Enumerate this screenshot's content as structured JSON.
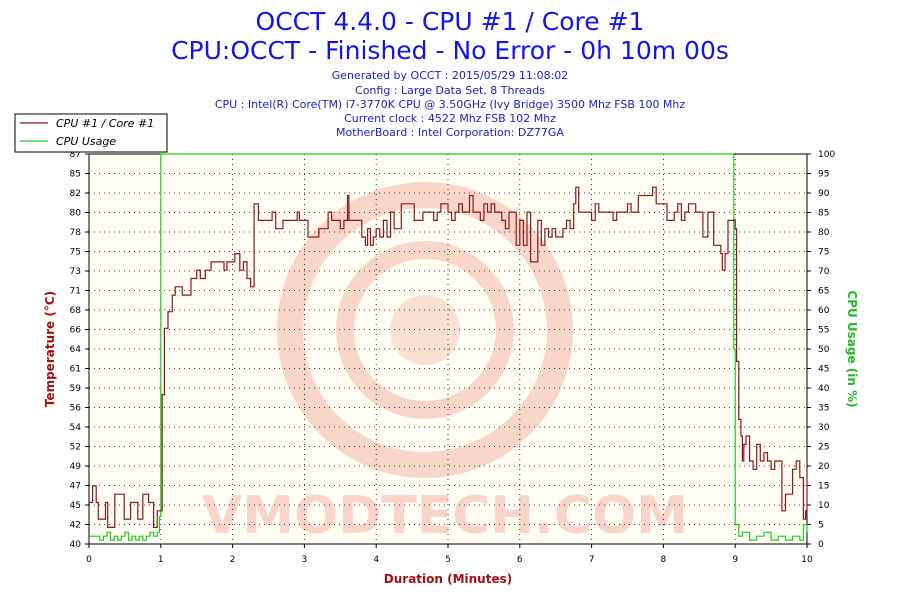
{
  "header": {
    "title_line1": "OCCT 4.4.0 - CPU #1 / Core #1",
    "title_line2": "CPU:OCCT - Finished - No Error - 0h 10m 00s",
    "generated": "Generated by OCCT : 2015/05/29 11:08:02",
    "config": "Config : Large Data Set, 8 Threads",
    "cpu": "CPU : Intel(R) Core(TM) i7-3770K CPU @ 3.50GHz (Ivy Bridge) 3500 Mhz FSB 100 Mhz",
    "clock": "Current clock : 4522 Mhz FSB 102 Mhz",
    "motherboard": "MotherBoard : Intel Corporation: DZ77GA"
  },
  "watermark": "VMODTECH.COM",
  "chart_data": {
    "type": "line",
    "xlabel": "Duration (Minutes)",
    "ylabel": "Temperature (°C)",
    "y2label": "CPU Usage (in %)",
    "xlim": [
      0,
      10
    ],
    "ylim": [
      40,
      87
    ],
    "y2lim": [
      0,
      100
    ],
    "x_ticks": [
      "0",
      "1",
      "2",
      "3",
      "4",
      "5",
      "6",
      "7",
      "8",
      "9",
      "10"
    ],
    "y_ticks": [
      "40",
      "42",
      "45",
      "47",
      "49",
      "52",
      "54",
      "56",
      "59",
      "61",
      "64",
      "66",
      "68",
      "71",
      "73",
      "75",
      "78",
      "80",
      "82",
      "85",
      "87"
    ],
    "y2_ticks": [
      "0",
      "5",
      "10",
      "15",
      "20",
      "25",
      "30",
      "35",
      "40",
      "45",
      "50",
      "55",
      "60",
      "65",
      "70",
      "75",
      "80",
      "85",
      "90",
      "95",
      "100"
    ],
    "grid": true,
    "legend_position": "top-left",
    "colors": {
      "temperature": "#8b1a1a",
      "usage": "#22cc22",
      "title": "#1414e6",
      "meta": "#2020c0"
    },
    "series": [
      {
        "name": "CPU #1 / Core #1",
        "axis": "left",
        "points": [
          [
            0,
            45
          ],
          [
            0.05,
            47
          ],
          [
            0.1,
            45
          ],
          [
            0.13,
            43
          ],
          [
            0.2,
            43
          ],
          [
            0.23,
            45
          ],
          [
            0.26,
            42
          ],
          [
            0.33,
            42
          ],
          [
            0.36,
            46
          ],
          [
            0.46,
            46
          ],
          [
            0.49,
            43
          ],
          [
            0.55,
            43
          ],
          [
            0.58,
            45
          ],
          [
            0.65,
            45
          ],
          [
            0.68,
            43
          ],
          [
            0.72,
            43
          ],
          [
            0.75,
            46
          ],
          [
            0.8,
            46
          ],
          [
            0.83,
            45
          ],
          [
            0.86,
            45
          ],
          [
            0.9,
            42
          ],
          [
            0.95,
            44
          ],
          [
            0.98,
            44
          ],
          [
            1.02,
            58
          ],
          [
            1.05,
            66
          ],
          [
            1.08,
            66
          ],
          [
            1.1,
            68
          ],
          [
            1.13,
            68
          ],
          [
            1.16,
            70
          ],
          [
            1.2,
            71
          ],
          [
            1.25,
            71
          ],
          [
            1.3,
            70
          ],
          [
            1.38,
            70
          ],
          [
            1.42,
            72
          ],
          [
            1.5,
            73
          ],
          [
            1.55,
            72
          ],
          [
            1.62,
            73
          ],
          [
            1.7,
            74
          ],
          [
            1.8,
            74
          ],
          [
            1.88,
            73
          ],
          [
            1.92,
            74
          ],
          [
            2.0,
            74
          ],
          [
            2.03,
            75
          ],
          [
            2.06,
            75
          ],
          [
            2.1,
            73
          ],
          [
            2.15,
            74
          ],
          [
            2.17,
            74
          ],
          [
            2.2,
            72
          ],
          [
            2.25,
            71
          ],
          [
            2.28,
            71
          ],
          [
            2.3,
            81
          ],
          [
            2.33,
            81
          ],
          [
            2.36,
            79
          ],
          [
            2.5,
            79
          ],
          [
            2.55,
            80
          ],
          [
            2.6,
            78
          ],
          [
            2.7,
            79
          ],
          [
            2.85,
            79
          ],
          [
            2.9,
            80
          ],
          [
            2.93,
            79
          ],
          [
            3.0,
            79
          ],
          [
            3.05,
            77
          ],
          [
            3.15,
            77
          ],
          [
            3.2,
            78
          ],
          [
            3.3,
            78
          ],
          [
            3.33,
            80
          ],
          [
            3.38,
            79
          ],
          [
            3.45,
            79
          ],
          [
            3.5,
            78
          ],
          [
            3.55,
            79
          ],
          [
            3.6,
            82
          ],
          [
            3.62,
            79
          ],
          [
            3.75,
            79
          ],
          [
            3.8,
            77
          ],
          [
            3.85,
            76
          ],
          [
            3.88,
            78
          ],
          [
            3.92,
            76
          ],
          [
            3.96,
            77
          ],
          [
            4.0,
            78
          ],
          [
            4.05,
            77
          ],
          [
            4.1,
            79
          ],
          [
            4.15,
            77
          ],
          [
            4.2,
            80
          ],
          [
            4.25,
            78
          ],
          [
            4.3,
            78
          ],
          [
            4.35,
            81
          ],
          [
            4.5,
            81
          ],
          [
            4.53,
            79
          ],
          [
            4.6,
            79
          ],
          [
            4.65,
            80
          ],
          [
            4.75,
            80
          ],
          [
            4.8,
            79
          ],
          [
            4.85,
            80
          ],
          [
            4.9,
            81
          ],
          [
            5.0,
            80
          ],
          [
            5.05,
            79
          ],
          [
            5.1,
            80
          ],
          [
            5.15,
            81
          ],
          [
            5.2,
            80
          ],
          [
            5.25,
            80
          ],
          [
            5.3,
            82
          ],
          [
            5.35,
            80
          ],
          [
            5.4,
            80
          ],
          [
            5.45,
            79
          ],
          [
            5.5,
            81
          ],
          [
            5.55,
            80
          ],
          [
            5.6,
            81
          ],
          [
            5.65,
            80
          ],
          [
            5.7,
            80
          ],
          [
            5.75,
            79
          ],
          [
            5.8,
            78
          ],
          [
            5.85,
            80
          ],
          [
            5.9,
            80
          ],
          [
            5.95,
            76
          ],
          [
            6.0,
            79
          ],
          [
            6.05,
            76
          ],
          [
            6.1,
            80
          ],
          [
            6.15,
            74
          ],
          [
            6.2,
            74
          ],
          [
            6.25,
            79
          ],
          [
            6.3,
            76
          ],
          [
            6.35,
            78
          ],
          [
            6.4,
            77
          ],
          [
            6.45,
            78
          ],
          [
            6.5,
            77
          ],
          [
            6.55,
            77
          ],
          [
            6.6,
            78
          ],
          [
            6.65,
            79
          ],
          [
            6.7,
            78
          ],
          [
            6.75,
            81
          ],
          [
            6.78,
            83
          ],
          [
            6.82,
            80
          ],
          [
            6.9,
            80
          ],
          [
            7.0,
            79
          ],
          [
            7.05,
            81
          ],
          [
            7.1,
            80
          ],
          [
            7.2,
            80
          ],
          [
            7.3,
            79
          ],
          [
            7.35,
            80
          ],
          [
            7.45,
            80
          ],
          [
            7.5,
            81
          ],
          [
            7.55,
            80
          ],
          [
            7.65,
            82
          ],
          [
            7.75,
            82
          ],
          [
            7.8,
            82
          ],
          [
            7.85,
            83
          ],
          [
            7.9,
            81
          ],
          [
            8.0,
            81
          ],
          [
            8.05,
            79
          ],
          [
            8.15,
            80
          ],
          [
            8.2,
            81
          ],
          [
            8.25,
            79
          ],
          [
            8.3,
            80
          ],
          [
            8.35,
            81
          ],
          [
            8.4,
            81
          ],
          [
            8.45,
            80
          ],
          [
            8.5,
            80
          ],
          [
            8.55,
            77
          ],
          [
            8.6,
            77
          ],
          [
            8.62,
            80
          ],
          [
            8.65,
            80
          ],
          [
            8.7,
            76
          ],
          [
            8.75,
            76
          ],
          [
            8.8,
            75
          ],
          [
            8.82,
            73
          ],
          [
            8.86,
            75
          ],
          [
            8.9,
            79
          ],
          [
            9.0,
            78
          ],
          [
            9.02,
            62
          ],
          [
            9.05,
            55
          ],
          [
            9.08,
            53
          ],
          [
            9.1,
            50
          ],
          [
            9.12,
            52
          ],
          [
            9.15,
            53
          ],
          [
            9.2,
            50
          ],
          [
            9.25,
            49
          ],
          [
            9.3,
            52
          ],
          [
            9.35,
            50
          ],
          [
            9.4,
            51
          ],
          [
            9.45,
            50
          ],
          [
            9.5,
            49
          ],
          [
            9.55,
            50
          ],
          [
            9.6,
            50
          ],
          [
            9.65,
            44
          ],
          [
            9.7,
            46
          ],
          [
            9.75,
            46
          ],
          [
            9.8,
            49
          ],
          [
            9.85,
            50
          ],
          [
            9.9,
            48
          ],
          [
            9.95,
            43
          ],
          [
            9.98,
            44
          ],
          [
            10,
            49
          ]
        ]
      },
      {
        "name": "CPU Usage",
        "axis": "right",
        "points": [
          [
            0,
            2
          ],
          [
            0.1,
            2
          ],
          [
            0.15,
            1
          ],
          [
            0.2,
            2
          ],
          [
            0.25,
            3
          ],
          [
            0.3,
            1
          ],
          [
            0.35,
            2
          ],
          [
            0.4,
            1
          ],
          [
            0.45,
            2
          ],
          [
            0.5,
            3
          ],
          [
            0.55,
            1
          ],
          [
            0.6,
            2
          ],
          [
            0.65,
            1
          ],
          [
            0.7,
            2
          ],
          [
            0.75,
            1
          ],
          [
            0.8,
            2
          ],
          [
            0.85,
            3
          ],
          [
            0.9,
            2
          ],
          [
            0.95,
            3
          ],
          [
            0.98,
            7
          ],
          [
            1.0,
            100
          ],
          [
            1.5,
            100
          ],
          [
            2.0,
            100
          ],
          [
            3.0,
            100
          ],
          [
            4.0,
            100
          ],
          [
            5.0,
            100
          ],
          [
            6.0,
            100
          ],
          [
            7.0,
            100
          ],
          [
            8.0,
            100
          ],
          [
            8.95,
            100
          ],
          [
            8.98,
            50
          ],
          [
            9.0,
            5
          ],
          [
            9.05,
            2
          ],
          [
            9.1,
            3
          ],
          [
            9.2,
            1
          ],
          [
            9.3,
            2
          ],
          [
            9.4,
            3
          ],
          [
            9.5,
            1
          ],
          [
            9.6,
            2
          ],
          [
            9.7,
            1
          ],
          [
            9.8,
            2
          ],
          [
            9.9,
            1
          ],
          [
            9.95,
            5
          ],
          [
            10,
            3
          ]
        ]
      }
    ]
  }
}
